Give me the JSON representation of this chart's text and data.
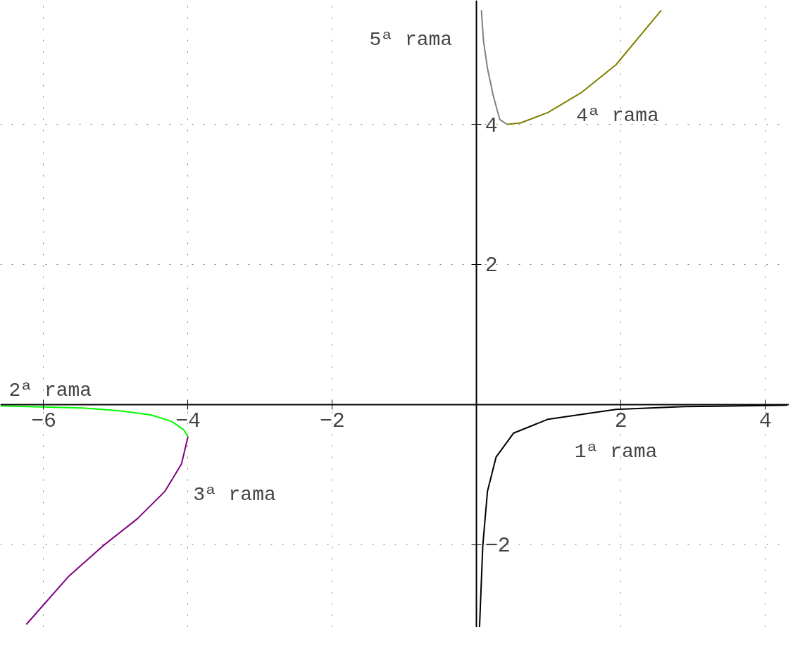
{
  "chart_data": {
    "type": "line",
    "xlim": [
      -6.6,
      4.33
    ],
    "ylim": [
      -3.18,
      5.77
    ],
    "xticks": [
      -6,
      -4,
      -2,
      2,
      4
    ],
    "yticks": [
      -2,
      2,
      4
    ],
    "grid": true,
    "series": [
      {
        "name": "1ª rama",
        "color": "#000000",
        "x": [
          0.04,
          0.085,
          0.15,
          0.27,
          0.51,
          0.99,
          1.93,
          2.88,
          4.3
        ],
        "values": [
          -3.18,
          -2.02,
          -1.24,
          -0.75,
          -0.41,
          -0.21,
          -0.07,
          -0.03,
          -0.01
        ]
      },
      {
        "name": "2ª rama",
        "color": "#00ff00",
        "x": [
          -6.6,
          -5.46,
          -4.94,
          -4.51,
          -4.23,
          -4.06,
          -4.0
        ],
        "values": [
          -0.02,
          -0.05,
          -0.09,
          -0.15,
          -0.24,
          -0.36,
          -0.46
        ]
      },
      {
        "name": "3ª rama",
        "color": "#800080",
        "x": [
          -4.0,
          -4.09,
          -4.32,
          -4.7,
          -5.18,
          -5.65,
          -6.24
        ],
        "values": [
          -0.46,
          -0.85,
          -1.24,
          -1.63,
          -2.02,
          -2.45,
          -3.14
        ]
      },
      {
        "name": "4ª rama",
        "color": "#808000",
        "x": [
          0.42,
          0.61,
          0.99,
          1.46,
          1.93,
          2.56
        ],
        "values": [
          4.0,
          4.02,
          4.17,
          4.46,
          4.85,
          5.63
        ]
      },
      {
        "name": "5ª rama",
        "color": "#808080",
        "x": [
          0.066,
          0.095,
          0.15,
          0.23,
          0.32,
          0.42
        ],
        "values": [
          5.63,
          5.19,
          4.8,
          4.41,
          4.07,
          4.0
        ]
      }
    ]
  }
}
